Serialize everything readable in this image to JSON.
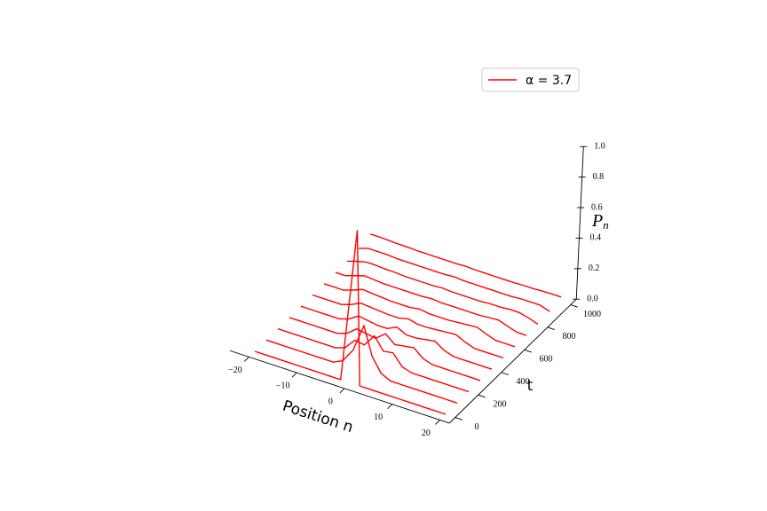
{
  "chart_data": {
    "type": "waterfall3d",
    "x_label": "Position  n",
    "y_label": "t",
    "z_label": {
      "base": "P",
      "sub": "n"
    },
    "series_name": "α = 3.7",
    "color": "#ff0000",
    "legend": "upper right",
    "x": [
      -20,
      -18,
      -16,
      -14,
      -12,
      -10,
      -8,
      -6,
      -4,
      -2,
      0,
      2,
      4,
      6,
      8,
      10,
      12,
      14,
      16,
      18,
      20
    ],
    "t": [
      0,
      100,
      200,
      300,
      400,
      500,
      600,
      700,
      800,
      900,
      1000
    ],
    "values": [
      [
        0,
        0,
        0,
        0,
        0,
        0,
        0,
        0,
        0,
        0,
        1.0,
        0,
        0,
        0,
        0,
        0,
        0,
        0,
        0,
        0,
        0
      ],
      [
        0,
        0,
        0,
        0,
        0,
        0,
        0,
        0,
        0.03,
        0.12,
        0.3,
        0.12,
        0.03,
        0,
        0,
        0,
        0,
        0,
        0,
        0,
        0
      ],
      [
        0,
        0,
        0,
        0,
        0,
        0,
        0,
        0.02,
        0.09,
        0.08,
        0.16,
        0.08,
        0.09,
        0.02,
        0,
        0,
        0,
        0,
        0,
        0,
        0
      ],
      [
        0,
        0,
        0,
        0,
        0,
        0,
        0.02,
        0.07,
        0.06,
        0.05,
        0.1,
        0.05,
        0.06,
        0.07,
        0.02,
        0,
        0,
        0,
        0,
        0,
        0
      ],
      [
        0,
        0,
        0,
        0,
        0,
        0.02,
        0.06,
        0.05,
        0.04,
        0.04,
        0.07,
        0.04,
        0.04,
        0.05,
        0.06,
        0.02,
        0,
        0,
        0,
        0,
        0
      ],
      [
        0,
        0,
        0,
        0,
        0.02,
        0.05,
        0.045,
        0.04,
        0.035,
        0.035,
        0.05,
        0.035,
        0.035,
        0.04,
        0.045,
        0.05,
        0.02,
        0,
        0,
        0,
        0
      ],
      [
        0,
        0,
        0,
        0.02,
        0.045,
        0.04,
        0.035,
        0.03,
        0.03,
        0.03,
        0.04,
        0.03,
        0.03,
        0.03,
        0.035,
        0.04,
        0.045,
        0.02,
        0,
        0,
        0
      ],
      [
        0,
        0,
        0.02,
        0.04,
        0.035,
        0.03,
        0.03,
        0.03,
        0.03,
        0.03,
        0.035,
        0.03,
        0.03,
        0.03,
        0.03,
        0.03,
        0.035,
        0.04,
        0.02,
        0,
        0
      ],
      [
        0,
        0.02,
        0.035,
        0.035,
        0.03,
        0.03,
        0.025,
        0.025,
        0.025,
        0.025,
        0.03,
        0.025,
        0.025,
        0.025,
        0.025,
        0.03,
        0.03,
        0.035,
        0.035,
        0.02,
        0
      ],
      [
        0.01,
        0.03,
        0.03,
        0.03,
        0.025,
        0.025,
        0.025,
        0.025,
        0.025,
        0.025,
        0.03,
        0.025,
        0.025,
        0.025,
        0.025,
        0.025,
        0.025,
        0.03,
        0.03,
        0.03,
        0.01
      ],
      [
        0.03,
        0.03,
        0.028,
        0.025,
        0.025,
        0.022,
        0.022,
        0.022,
        0.022,
        0.022,
        0.025,
        0.022,
        0.022,
        0.022,
        0.022,
        0.022,
        0.025,
        0.025,
        0.028,
        0.03,
        0.03
      ]
    ],
    "xlim": [
      -24,
      22
    ],
    "ylim": [
      -50,
      1050
    ],
    "zlim": [
      0,
      1
    ],
    "xticks": [
      {
        "value": -20,
        "label": "−20"
      },
      {
        "value": -10,
        "label": "−10"
      },
      0,
      10,
      20
    ],
    "yticks": [
      0,
      200,
      400,
      600,
      800,
      1000
    ],
    "zticks": [
      {
        "value": 0,
        "label": "0.0"
      },
      0.2,
      0.4,
      0.6,
      0.8,
      {
        "value": 1,
        "label": "1.0"
      }
    ]
  }
}
